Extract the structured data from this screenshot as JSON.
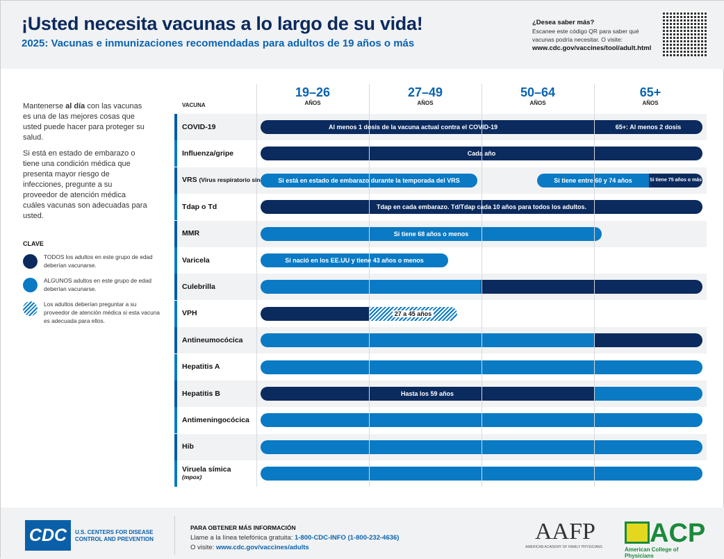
{
  "header": {
    "title": "¡Usted necesita vacunas a lo largo de su vida!",
    "subtitle": "2025: Vacunas e inmunizaciones recomendadas para adultos de 19 años o más",
    "more_title": "¿Desea saber más?",
    "more_text": "Escanee este código QR para saber qué vacunas podría necesitar. O visite:",
    "more_url": "www.cdc.gov/vaccines/tool/adult.html"
  },
  "intro": {
    "p1_a": "Mantenerse ",
    "p1_b": "al día",
    "p1_c": " con las vacunas es una de las mejores cosas que usted puede hacer para proteger su salud.",
    "p2": "Si está en estado de embarazo o tiene una condición médica que presenta mayor riesgo de infecciones, pregunte a su proveedor de atención médica cuáles vacunas son adecuadas para usted."
  },
  "key": {
    "title": "CLAVE",
    "all": "TODOS los adultos en este grupo de edad deberían vacunarse.",
    "some": "ALGUNOS adultos en este grupo de edad deberían vacunarse.",
    "ask": "Los adultos deberían preguntar a su proveedor de atención médica si esta vacuna es adecuada para ellos."
  },
  "colors": {
    "all": "#0b2a5e",
    "some": "#0a7ac4"
  },
  "table": {
    "vaccine_header": "VACUNA",
    "age_unit": "AÑOS",
    "ages": [
      "19–26",
      "27–49",
      "50–64",
      "65+"
    ],
    "rows": [
      {
        "name": "COVID-19",
        "bars": [
          "Al menos 1 dosis de la vacuna actual contra el COVID-19",
          "65+: Al menos 2 dosis"
        ]
      },
      {
        "name": "Influenza/gripe",
        "bars": [
          "Cada año"
        ]
      },
      {
        "name": "VRS",
        "name_note": "(Virus respiratorio sincitial)",
        "bars": [
          "Si está en estado de embarazo durante la temporada del VRS",
          "Si tiene entre 60 y 74 años",
          "Si tiene 75 años o más"
        ]
      },
      {
        "name": "Tdap o Td",
        "bars": [
          "Tdap en cada embarazo. Td/Tdap cada 10 años para todos los adultos."
        ]
      },
      {
        "name": "MMR",
        "bars": [
          "Si tiene 68 años o menos"
        ]
      },
      {
        "name": "Varicela",
        "bars": [
          "Si nació en los EE.UU y tiene 43 años o menos"
        ]
      },
      {
        "name": "Culebrilla",
        "bars": []
      },
      {
        "name": "VPH",
        "bars": [
          "27 a 45 años"
        ]
      },
      {
        "name": "Antineumocócica",
        "bars": []
      },
      {
        "name": "Hepatitis A",
        "bars": []
      },
      {
        "name": "Hepatitis B",
        "bars": [
          "Hasta los 59 años"
        ]
      },
      {
        "name": "Antimeningocócica",
        "bars": []
      },
      {
        "name": "Hib",
        "bars": []
      },
      {
        "name": "Viruela símica",
        "name_note": "(mpox)",
        "bars": []
      }
    ]
  },
  "footer": {
    "cdc_logo": "CDC",
    "cdc_name": "U.S. CENTERS FOR DISEASE CONTROL AND PREVENTION",
    "info_title": "PARA OBTENER MÁS INFORMACIÓN",
    "phone_label": "Llame a la línea telefónica gratuita: ",
    "phone": "1-800-CDC-INFO (1-800-232-4636)",
    "visit_label": "O visite: ",
    "visit_url": "www.cdc.gov/vaccines/adults",
    "aafp": "AAFP",
    "aafp_full": "AMERICAN ACADEMY OF FAMILY PHYSICIANS",
    "acp": "ACP",
    "acp_full": "American College of Physicians"
  }
}
